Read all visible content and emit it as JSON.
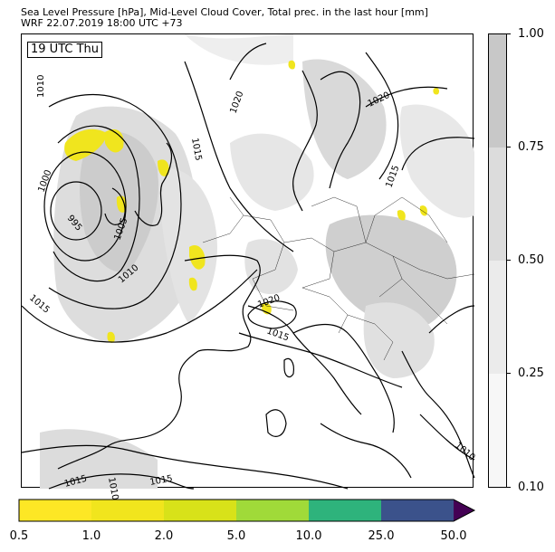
{
  "title_line1": "Sea Level Pressure [hPa], Mid-Level Cloud Cover, Total prec. in the last hour [mm]",
  "title_line2": "WRF 22.07.2019 18:00 UTC +73",
  "time_label": "19 UTC Thu",
  "isobar_labels": [
    "1010",
    "1015",
    "1000",
    "995",
    "1005",
    "1010",
    "1015",
    "1020",
    "1020",
    "1015",
    "1020",
    "1015",
    "1010",
    "1015",
    "1015",
    "1010"
  ],
  "cloud_cover_colorbar": {
    "ticks": [
      "1.00",
      "0.75",
      "0.50",
      "0.25",
      "0.10"
    ],
    "colors": [
      "#c8c8c8",
      "#dcdcdc",
      "#ebebeb",
      "#f7f7f7"
    ]
  },
  "precip_colorbar": {
    "ticks": [
      "0.5",
      "1.0",
      "2.0",
      "5.0",
      "10.0",
      "25.0",
      "50.0"
    ],
    "colors": [
      "#fde725",
      "#f1e51d",
      "#d8e219",
      "#a0da39",
      "#2eb37c",
      "#3b528b",
      "#440154"
    ]
  }
}
